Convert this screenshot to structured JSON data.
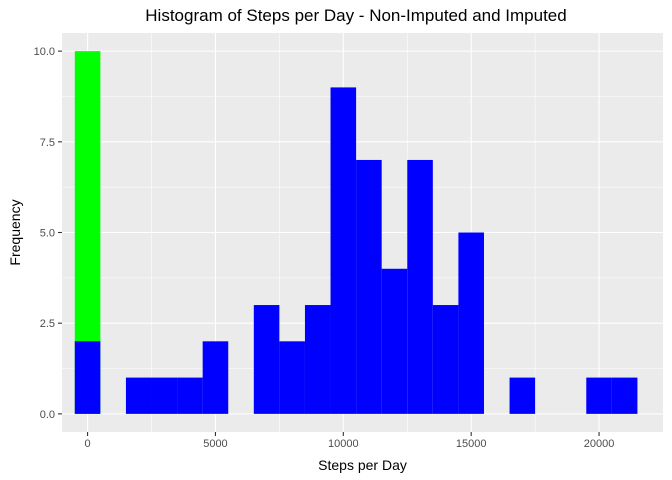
{
  "chart_data": {
    "type": "bar",
    "title": "Histogram of Steps per Day - Non-Imputed and Imputed",
    "xlabel": "Steps per Day",
    "ylabel": "Frequency",
    "xlim": [
      -1000,
      22500
    ],
    "ylim": [
      -0.5,
      10.5
    ],
    "bin_width": 1000,
    "xticks": [
      0,
      5000,
      10000,
      15000,
      20000
    ],
    "xtick_labels": [
      "0",
      "5000",
      "10000",
      "15000",
      "20000"
    ],
    "yticks": [
      0,
      2.5,
      5,
      7.5,
      10
    ],
    "ytick_labels": [
      "0.0",
      "2.5",
      "5.0",
      "7.5",
      "10.0"
    ],
    "grid": true,
    "background": "#ebebeb",
    "stacked": false,
    "series": [
      {
        "color": "#00ff00",
        "bins": [
          {
            "x": 0,
            "count": 10
          }
        ]
      },
      {
        "color": "#0000ff",
        "bins": [
          {
            "x": 0,
            "count": 2
          },
          {
            "x": 2000,
            "count": 1
          },
          {
            "x": 3000,
            "count": 1
          },
          {
            "x": 4000,
            "count": 1
          },
          {
            "x": 5000,
            "count": 2
          },
          {
            "x": 7000,
            "count": 3
          },
          {
            "x": 8000,
            "count": 2
          },
          {
            "x": 9000,
            "count": 3
          },
          {
            "x": 10000,
            "count": 9
          },
          {
            "x": 11000,
            "count": 7
          },
          {
            "x": 12000,
            "count": 4
          },
          {
            "x": 13000,
            "count": 7
          },
          {
            "x": 14000,
            "count": 3
          },
          {
            "x": 15000,
            "count": 5
          },
          {
            "x": 17000,
            "count": 1
          },
          {
            "x": 20000,
            "count": 1
          },
          {
            "x": 21000,
            "count": 1
          }
        ]
      }
    ]
  }
}
